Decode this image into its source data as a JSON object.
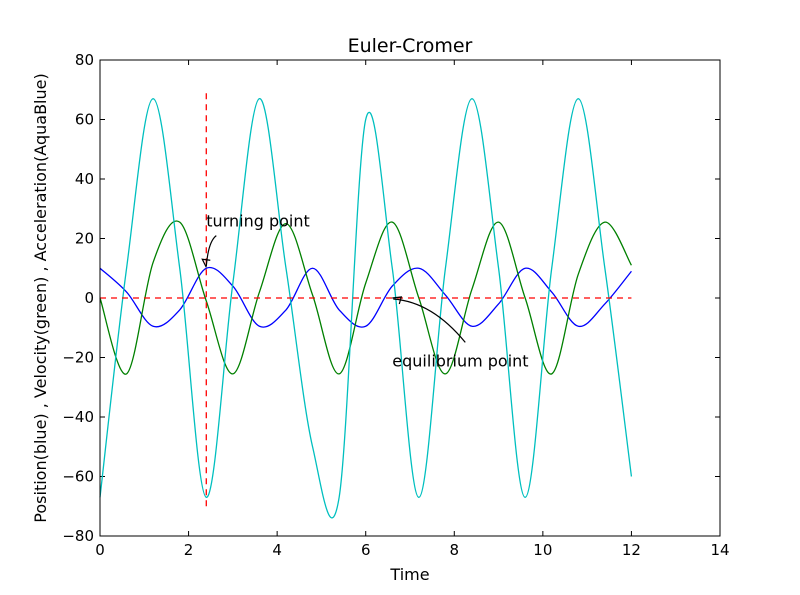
{
  "chart_data": {
    "type": "line",
    "title": "Euler-Cromer",
    "xlabel": "Time",
    "ylabel": "Position(blue) , Velocity(green) , Acceleration(AquaBlue)",
    "xlim": [
      0,
      14
    ],
    "ylim": [
      -80,
      80
    ],
    "xticks": [
      "0",
      "2",
      "4",
      "6",
      "8",
      "10",
      "12",
      "14"
    ],
    "yticks": [
      "80",
      "60",
      "40",
      "20",
      "0",
      "−20",
      "−40",
      "−60",
      "−80"
    ],
    "grid": false,
    "legend": "none",
    "series": [
      {
        "color": "#0000ff",
        "x": [
          0,
          0.6,
          1.2,
          1.8,
          2.4,
          3.0,
          3.6,
          4.2,
          4.8,
          5.4,
          6.0,
          6.6,
          7.2,
          7.8,
          8.4,
          9.0,
          9.6,
          10.2,
          10.8,
          11.4,
          12.0
        ],
        "values": [
          10,
          2,
          -9.5,
          -4,
          10,
          4,
          -9.5,
          -4,
          10,
          -4,
          -9.5,
          4,
          10,
          1,
          -9.5,
          -2,
          10,
          2,
          -9.5,
          -2,
          9
        ]
      },
      {
        "color": "#008000",
        "x": [
          0,
          0.6,
          1.2,
          1.8,
          2.4,
          3.0,
          3.6,
          4.2,
          4.8,
          5.4,
          6.0,
          6.6,
          7.2,
          7.8,
          8.4,
          9.0,
          9.6,
          10.2,
          10.8,
          11.4,
          12.0
        ],
        "values": [
          0,
          -25.5,
          12,
          25.5,
          -1,
          -25.5,
          2,
          25,
          1,
          -25.5,
          5,
          25.5,
          0,
          -25.5,
          3,
          25.5,
          0,
          -25.5,
          8,
          25.5,
          11
        ]
      },
      {
        "color": "#00bfbf",
        "x": [
          0,
          0.6,
          1.2,
          1.8,
          2.4,
          3.0,
          3.6,
          4.2,
          4.8,
          5.4,
          6.0,
          6.6,
          7.2,
          7.8,
          8.4,
          9.0,
          9.6,
          10.2,
          10.8,
          11.4,
          12.0
        ],
        "values": [
          -67,
          10,
          67,
          10,
          -67,
          5,
          67,
          10,
          -50,
          -67,
          60,
          10,
          -67,
          10,
          67,
          10,
          -67,
          10,
          67,
          10,
          -60
        ]
      }
    ],
    "reference_lines": [
      {
        "orientation": "horizontal",
        "value": 0,
        "from": 0,
        "to": 12,
        "color": "#ff0000",
        "style": "dashed"
      },
      {
        "orientation": "vertical",
        "value": 2.4,
        "from": -70,
        "to": 70,
        "color": "#ff0000",
        "style": "dashed"
      }
    ],
    "annotations": [
      {
        "text": "turning point",
        "text_x": 2.4,
        "text_y": 24,
        "point_x": 2.4,
        "point_y": 10
      },
      {
        "text": "equilibrium point",
        "text_x": 6.6,
        "text_y": -23,
        "point_x": 6.6,
        "point_y": 0
      }
    ]
  }
}
